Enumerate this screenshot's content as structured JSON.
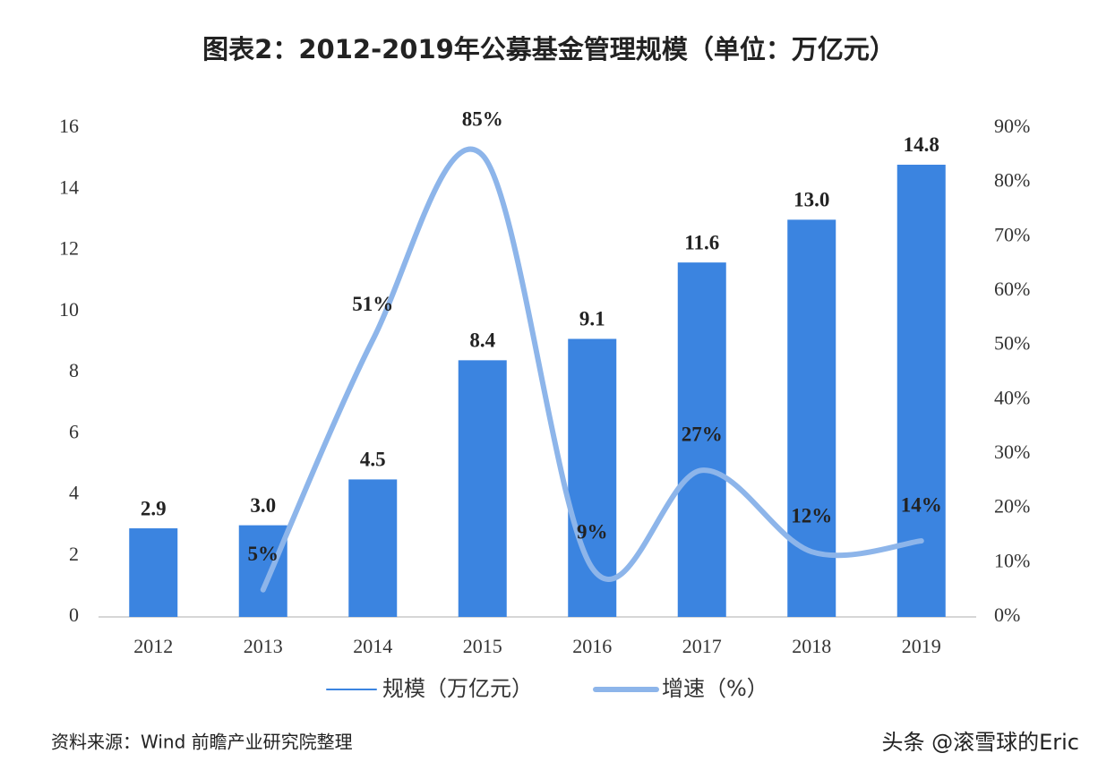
{
  "chart_data": {
    "type": "bar-line",
    "title": "图表2：2012-2019年公募基金管理规模（单位：万亿元）",
    "categories": [
      "2012",
      "2013",
      "2014",
      "2015",
      "2016",
      "2017",
      "2018",
      "2019"
    ],
    "series": [
      {
        "name": "规模（万亿元）",
        "type": "bar",
        "color": "#3b84e0",
        "values": [
          2.9,
          3.0,
          4.5,
          8.4,
          9.1,
          11.6,
          13.0,
          14.8
        ],
        "value_labels": [
          "2.9",
          "3.0",
          "4.5",
          "8.4",
          "9.1",
          "11.6",
          "13.0",
          "14.8"
        ]
      },
      {
        "name": "增速（%）",
        "type": "line",
        "axis": "y2",
        "color": "#8db5ea",
        "values": [
          null,
          5,
          51,
          85,
          9,
          27,
          12,
          14
        ],
        "value_labels": [
          null,
          "5%",
          "51%",
          "85%",
          "9%",
          "27%",
          "12%",
          "14%"
        ]
      }
    ],
    "ylim": [
      0,
      16
    ],
    "yticks": [
      0,
      2,
      4,
      6,
      8,
      10,
      12,
      14,
      16
    ],
    "y2lim": [
      0,
      90
    ],
    "y2ticks": [
      {
        "value": 0,
        "label": "0%"
      },
      {
        "value": 10,
        "label": "10%"
      },
      {
        "value": 20,
        "label": "20%"
      },
      {
        "value": 30,
        "label": "30%"
      },
      {
        "value": 40,
        "label": "40%"
      },
      {
        "value": 50,
        "label": "50%"
      },
      {
        "value": 60,
        "label": "60%"
      },
      {
        "value": 70,
        "label": "70%"
      },
      {
        "value": 80,
        "label": "80%"
      },
      {
        "value": 90,
        "label": "90%"
      }
    ],
    "grid": false,
    "source": "资料来源：Wind  前瞻产业研究院整理",
    "watermark": "头条 @滚雪球的Eric"
  }
}
